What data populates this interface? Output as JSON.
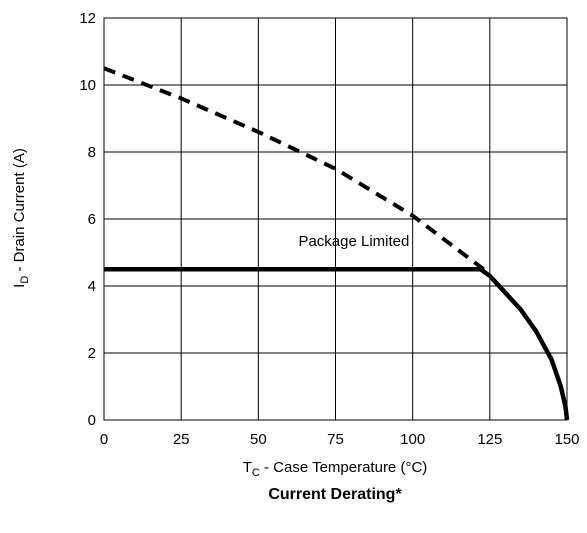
{
  "chart_data": {
    "type": "line",
    "title": "Current Derating*",
    "xlabel": {
      "main": "T",
      "sub": "C",
      "rest": " - Case Temperature (°C)"
    },
    "ylabel": {
      "main": "I",
      "sub": "D",
      "rest": " - Drain Current (A)"
    },
    "xlim": [
      0,
      150
    ],
    "ylim": [
      0,
      12
    ],
    "x_ticks": [
      0,
      25,
      50,
      75,
      100,
      125,
      150
    ],
    "y_ticks": [
      0,
      2,
      4,
      6,
      8,
      10,
      12
    ],
    "grid": true,
    "annotations": [
      {
        "text": "Package Limited",
        "x": 63,
        "y": 5.2
      }
    ],
    "series": [
      {
        "style": "dashed",
        "x": [
          0,
          25,
          50,
          75,
          100,
          123
        ],
        "y": [
          10.5,
          9.6,
          8.6,
          7.5,
          6.1,
          4.5
        ]
      },
      {
        "style": "solid",
        "x": [
          0,
          122,
          125,
          130,
          135,
          140,
          145,
          148,
          149.5,
          150
        ],
        "y": [
          4.5,
          4.5,
          4.3,
          3.8,
          3.3,
          2.65,
          1.8,
          1.0,
          0.4,
          0
        ]
      }
    ]
  }
}
